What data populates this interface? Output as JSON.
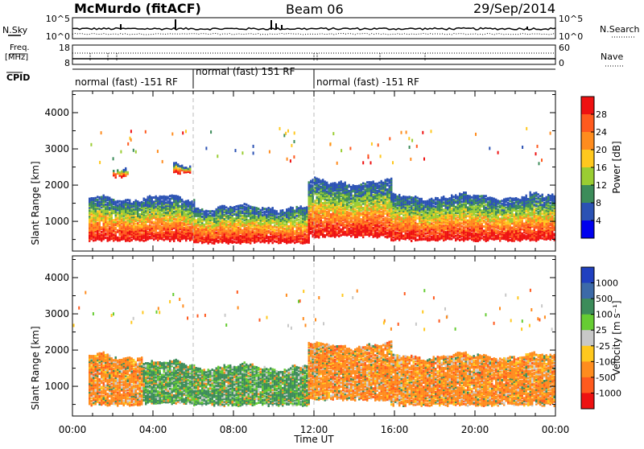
{
  "header": {
    "station": "McMurdo (fitACF)",
    "beam": "Beam 06",
    "date": "29/Sep/2014"
  },
  "summary": {
    "nsky_label": "N.Sky",
    "nsky_ticks": [
      "10^5",
      "10^0"
    ],
    "nsearch_label": "N.Search",
    "nsearch_ticks": [
      "10^5",
      "10^0"
    ],
    "freq_label_1": "Freq.",
    "freq_label_2": "[MHz]",
    "freq_ticks": [
      "18",
      "8"
    ],
    "nave_label": "Nave",
    "nave_ticks": [
      "60",
      "0"
    ],
    "cpid_label": "CPID",
    "cpid_segments": [
      {
        "text": "normal (fast) -151 RF",
        "start_hour": 0,
        "end_hour": 6
      },
      {
        "text": "normal (fast) 151 RF",
        "start_hour": 6,
        "end_hour": 12
      },
      {
        "text": "normal (fast) -151 RF",
        "start_hour": 12,
        "end_hour": 24
      }
    ]
  },
  "chart_data": [
    {
      "type": "heatmap",
      "name": "power",
      "ylabel": "Slant Range [km]",
      "xlabel": "Time UT",
      "xlim_hours": [
        0,
        24
      ],
      "ylim": [
        180,
        4600
      ],
      "x_ticks": [
        "00:00",
        "04:00",
        "08:00",
        "12:00",
        "16:00",
        "20:00",
        "00:00"
      ],
      "y_ticks": [
        1000,
        2000,
        3000,
        4000
      ],
      "colorbar_label": "Power [dB]",
      "colorbar_ticks": [
        "28",
        "24",
        "20",
        "16",
        "12",
        "8",
        "4"
      ],
      "colorbar_colors": [
        "#ee1111",
        "#ff5a1e",
        "#ff8c1e",
        "#ffc81e",
        "#9acd32",
        "#3c8c5a",
        "#2b52b4",
        "#0000ee"
      ],
      "dashed_vertical_hours": [
        6,
        12
      ],
      "echo_regions": [
        {
          "t0": 0.8,
          "t1": 6.0,
          "r0": 450,
          "r1": 1600
        },
        {
          "t0": 6.0,
          "t1": 11.7,
          "r0": 380,
          "r1": 1350
        },
        {
          "t0": 11.7,
          "t1": 15.8,
          "r0": 550,
          "r1": 2050
        },
        {
          "t0": 15.8,
          "t1": 24.0,
          "r0": 450,
          "r1": 1650
        },
        {
          "t0": 2.0,
          "t1": 2.8,
          "r0": 2200,
          "r1": 2450
        },
        {
          "t0": 5.0,
          "t1": 5.8,
          "r0": 2300,
          "r1": 2500
        }
      ]
    },
    {
      "type": "heatmap",
      "name": "velocity",
      "ylabel": "Slant Range [km]",
      "xlabel": "Time UT",
      "xlim_hours": [
        0,
        24
      ],
      "ylim": [
        180,
        4600
      ],
      "x_ticks": [
        "00:00",
        "04:00",
        "08:00",
        "12:00",
        "16:00",
        "20:00",
        "00:00"
      ],
      "y_ticks": [
        1000,
        2000,
        3000,
        4000
      ],
      "colorbar_label": "Velocity [m s⁻¹]",
      "colorbar_ticks": [
        "1000",
        "500",
        "100",
        "25",
        "-25",
        "-100",
        "-500",
        "-1000"
      ],
      "colorbar_colors": [
        "#2040c0",
        "#3c6aa8",
        "#3c8c5a",
        "#66cc33",
        "#c8c8c8",
        "#ffc81e",
        "#ff8c1e",
        "#ff5a1e",
        "#ee1111"
      ],
      "dashed_vertical_hours": [
        6,
        12
      ],
      "echo_regions": [
        {
          "t0": 0.8,
          "t1": 3.5,
          "r0": 450,
          "r1": 1800,
          "dominant": "-100"
        },
        {
          "t0": 3.5,
          "t1": 6.0,
          "r0": 500,
          "r1": 1600,
          "dominant": "100"
        },
        {
          "t0": 6.0,
          "t1": 11.7,
          "r0": 450,
          "r1": 1500,
          "dominant": "100"
        },
        {
          "t0": 11.7,
          "t1": 15.8,
          "r0": 600,
          "r1": 2100,
          "dominant": "-100"
        },
        {
          "t0": 15.8,
          "t1": 24.0,
          "r0": 450,
          "r1": 1800,
          "dominant": "-100"
        }
      ]
    }
  ]
}
